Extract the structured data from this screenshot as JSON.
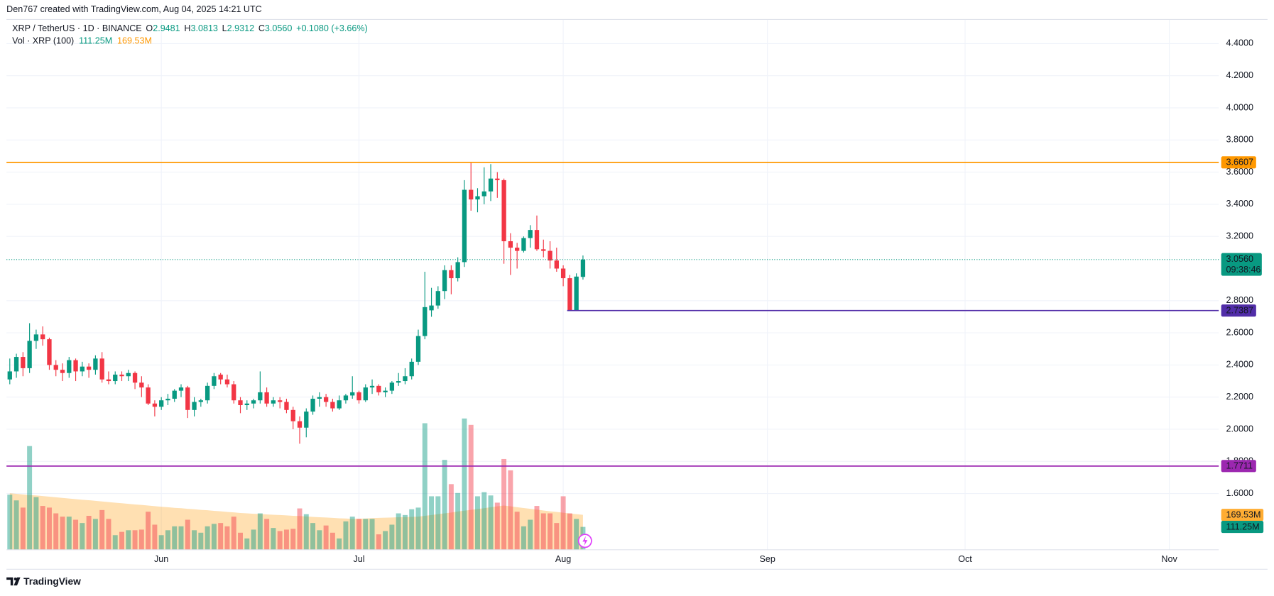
{
  "header": {
    "credit": "Den767 created with TradingView.com, Aug 04, 2025 14:21 UTC"
  },
  "footer": {
    "brand": "TradingView"
  },
  "chart_data": {
    "type": "candlestick",
    "title": "XRP / TetherUS · 1D · BINANCE",
    "ohlc_legend": [
      {
        "key": "O",
        "value": "2.9481"
      },
      {
        "key": "H",
        "value": "3.0813"
      },
      {
        "key": "L",
        "value": "2.9312"
      },
      {
        "key": "C",
        "value": "3.0560"
      }
    ],
    "change": "+0.1080 (+3.66%)",
    "open": [
      2.31,
      2.36,
      2.45,
      2.38,
      2.55,
      2.59,
      2.56,
      2.4,
      2.37,
      2.35,
      2.43,
      2.36,
      2.39,
      2.37,
      2.44,
      2.31,
      2.3,
      2.34,
      2.33,
      2.35,
      2.29,
      2.26,
      2.16,
      2.14,
      2.18,
      2.19,
      2.24,
      2.26,
      2.12,
      2.17,
      2.18,
      2.27,
      2.34,
      2.31,
      2.28,
      2.18,
      2.15,
      2.16,
      2.18,
      2.23,
      2.16,
      2.18,
      2.17,
      2.12,
      2.05,
      2.01,
      2.11,
      2.19,
      2.2,
      2.17,
      2.13,
      2.18,
      2.21,
      2.23,
      2.18,
      2.26,
      2.27,
      2.23,
      2.24,
      2.29,
      2.3,
      2.33,
      2.42,
      2.58,
      2.74,
      2.77,
      2.86,
      2.99,
      2.94,
      3.04,
      3.49,
      3.43,
      3.45,
      3.48,
      3.56,
      3.55,
      3.17,
      3.13,
      3.11,
      3.19,
      3.24,
      3.12,
      3.11,
      3.05,
      3.0,
      2.94,
      2.74,
      2.9481
    ],
    "high": [
      2.44,
      2.47,
      2.48,
      2.66,
      2.62,
      2.64,
      2.57,
      2.43,
      2.41,
      2.45,
      2.44,
      2.42,
      2.41,
      2.46,
      2.48,
      2.36,
      2.36,
      2.36,
      2.37,
      2.36,
      2.33,
      2.28,
      2.18,
      2.2,
      2.22,
      2.25,
      2.28,
      2.27,
      2.2,
      2.19,
      2.29,
      2.35,
      2.35,
      2.34,
      2.3,
      2.2,
      2.18,
      2.19,
      2.36,
      2.26,
      2.2,
      2.2,
      2.19,
      2.14,
      2.08,
      2.13,
      2.21,
      2.23,
      2.22,
      2.19,
      2.21,
      2.22,
      2.33,
      2.24,
      2.28,
      2.31,
      2.28,
      2.26,
      2.3,
      2.35,
      2.38,
      2.44,
      2.62,
      2.98,
      2.88,
      2.89,
      3.02,
      3.02,
      3.07,
      3.55,
      3.66,
      3.5,
      3.63,
      3.65,
      3.6,
      3.56,
      3.22,
      3.16,
      3.2,
      3.27,
      3.33,
      3.18,
      3.17,
      3.13,
      3.02,
      2.96,
      2.97,
      3.0813
    ],
    "low": [
      2.28,
      2.32,
      2.33,
      2.35,
      2.5,
      2.52,
      2.37,
      2.33,
      2.3,
      2.32,
      2.3,
      2.33,
      2.32,
      2.34,
      2.29,
      2.28,
      2.28,
      2.3,
      2.3,
      2.25,
      2.2,
      2.15,
      2.08,
      2.12,
      2.15,
      2.17,
      2.2,
      2.07,
      2.08,
      2.14,
      2.16,
      2.25,
      2.28,
      2.26,
      2.16,
      2.1,
      2.12,
      2.13,
      2.16,
      2.14,
      2.14,
      2.13,
      2.1,
      2.0,
      1.91,
      1.95,
      2.09,
      2.14,
      2.14,
      2.11,
      2.12,
      2.16,
      2.19,
      2.16,
      2.17,
      2.22,
      2.21,
      2.2,
      2.22,
      2.27,
      2.28,
      2.31,
      2.4,
      2.56,
      2.7,
      2.75,
      2.81,
      2.84,
      2.92,
      3.01,
      3.36,
      3.35,
      3.4,
      3.42,
      3.44,
      3.03,
      2.96,
      3.0,
      3.1,
      3.13,
      3.11,
      3.07,
      3.0,
      2.98,
      2.89,
      2.7387,
      2.74,
      2.9312
    ],
    "close": [
      2.36,
      2.45,
      2.38,
      2.55,
      2.59,
      2.56,
      2.4,
      2.37,
      2.35,
      2.43,
      2.36,
      2.39,
      2.37,
      2.44,
      2.31,
      2.3,
      2.34,
      2.33,
      2.35,
      2.29,
      2.26,
      2.16,
      2.14,
      2.18,
      2.19,
      2.24,
      2.26,
      2.12,
      2.17,
      2.18,
      2.27,
      2.33,
      2.31,
      2.28,
      2.18,
      2.15,
      2.16,
      2.18,
      2.23,
      2.16,
      2.18,
      2.17,
      2.12,
      2.05,
      2.01,
      2.11,
      2.19,
      2.2,
      2.17,
      2.13,
      2.18,
      2.21,
      2.23,
      2.18,
      2.26,
      2.27,
      2.23,
      2.24,
      2.29,
      2.3,
      2.33,
      2.42,
      2.58,
      2.76,
      2.77,
      2.86,
      2.99,
      2.94,
      3.04,
      3.49,
      3.43,
      3.45,
      3.48,
      3.56,
      3.55,
      3.17,
      3.13,
      3.11,
      3.19,
      3.24,
      3.12,
      3.11,
      3.05,
      3.0,
      2.94,
      2.74,
      2.95,
      3.056
    ],
    "up_color": "#089981",
    "down_color": "#f23645",
    "xlim": [
      -0.5,
      183.5
    ],
    "xticks": [
      {
        "value": 23,
        "label": "Jun"
      },
      {
        "value": 53,
        "label": "Jul"
      },
      {
        "value": 84,
        "label": "Aug"
      },
      {
        "value": 115,
        "label": "Sep"
      },
      {
        "value": 145,
        "label": "Oct"
      },
      {
        "value": 176,
        "label": "Nov"
      }
    ],
    "ylim": [
      1.25,
      4.55
    ],
    "yticks": [
      {
        "value": 1.6,
        "label": "1.6000"
      },
      {
        "value": 1.8,
        "label": "1.8000"
      },
      {
        "value": 2.0,
        "label": "2.0000"
      },
      {
        "value": 2.2,
        "label": "2.2000"
      },
      {
        "value": 2.4,
        "label": "2.4000"
      },
      {
        "value": 2.6,
        "label": "2.6000"
      },
      {
        "value": 2.8,
        "label": "2.8000"
      },
      {
        "value": 3.2,
        "label": "3.2000"
      },
      {
        "value": 3.4,
        "label": "3.4000"
      },
      {
        "value": 3.6,
        "label": "3.6000"
      },
      {
        "value": 3.8,
        "label": "3.8000"
      },
      {
        "value": 4.0,
        "label": "4.0000"
      },
      {
        "value": 4.2,
        "label": "4.2000"
      },
      {
        "value": 4.4,
        "label": "4.4000"
      }
    ],
    "grid": true,
    "levels": [
      {
        "value": 3.6607,
        "label": "3.6607",
        "color": "#ff9800"
      },
      {
        "value": 2.7387,
        "label": "2.7387",
        "color": "#512da8"
      },
      {
        "value": 1.7711,
        "label": "1.7711",
        "color": "#9c27b0"
      }
    ],
    "last_price": {
      "label": "3.0560",
      "countdown": "09:38:46"
    },
    "volume": {
      "name": "Vol · XRP (100)",
      "ylim": [
        0,
        2577
      ],
      "values": [
        268,
        240,
        205,
        504,
        256,
        213,
        205,
        177,
        161,
        161,
        146,
        130,
        165,
        150,
        193,
        150,
        71,
        87,
        95,
        95,
        98,
        185,
        122,
        71,
        95,
        114,
        114,
        146,
        95,
        83,
        114,
        126,
        130,
        114,
        161,
        83,
        55,
        98,
        177,
        150,
        106,
        91,
        98,
        102,
        201,
        173,
        130,
        95,
        118,
        83,
        55,
        138,
        161,
        150,
        150,
        150,
        75,
        91,
        122,
        177,
        169,
        197,
        205,
        615,
        260,
        260,
        437,
        319,
        276,
        638,
        607,
        260,
        280,
        264,
        229,
        441,
        386,
        185,
        114,
        146,
        213,
        177,
        177,
        130,
        260,
        177,
        150,
        111.25
      ],
      "ma": [
        275,
        272,
        269,
        266,
        264,
        261,
        258,
        255,
        252,
        249,
        246,
        243,
        241,
        238,
        235,
        232,
        229,
        226,
        223,
        220,
        218,
        215,
        212,
        209,
        207,
        204,
        202,
        199,
        197,
        194,
        192,
        189,
        187,
        184,
        182,
        179,
        177,
        175,
        174,
        172,
        170,
        169,
        167,
        165,
        164,
        162,
        160,
        158,
        157,
        155,
        153,
        152,
        150,
        151,
        152,
        154,
        155,
        156,
        157,
        158,
        159,
        160,
        161,
        165,
        169,
        173,
        177,
        181,
        186,
        190,
        194,
        198,
        202,
        207,
        211,
        215,
        211,
        207,
        203,
        199,
        195,
        191,
        187,
        184,
        180,
        176,
        173,
        169.53
      ],
      "last_label": "111.25M",
      "ma_last_label": "169.53M",
      "up_color": "#089981",
      "down_color": "#f23645",
      "ma_color": "#ff9800"
    }
  }
}
